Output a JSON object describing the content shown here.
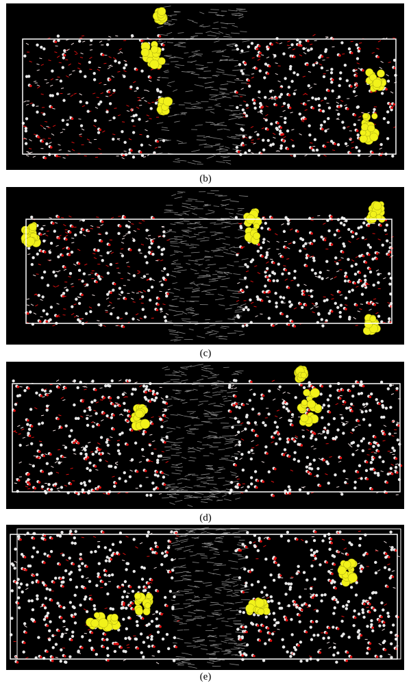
{
  "figure": {
    "panels": [
      {
        "label": "(b)"
      },
      {
        "label": "(c)"
      },
      {
        "label": "(d)"
      },
      {
        "label": "(e)"
      }
    ],
    "colors": {
      "background": "#000000",
      "box": "#ffffff",
      "oxygen": "#e01010",
      "hydrogen": "#e8e8e8",
      "graphene": "#8a8a8a",
      "highlight_molecule": "#f2f21a"
    }
  }
}
